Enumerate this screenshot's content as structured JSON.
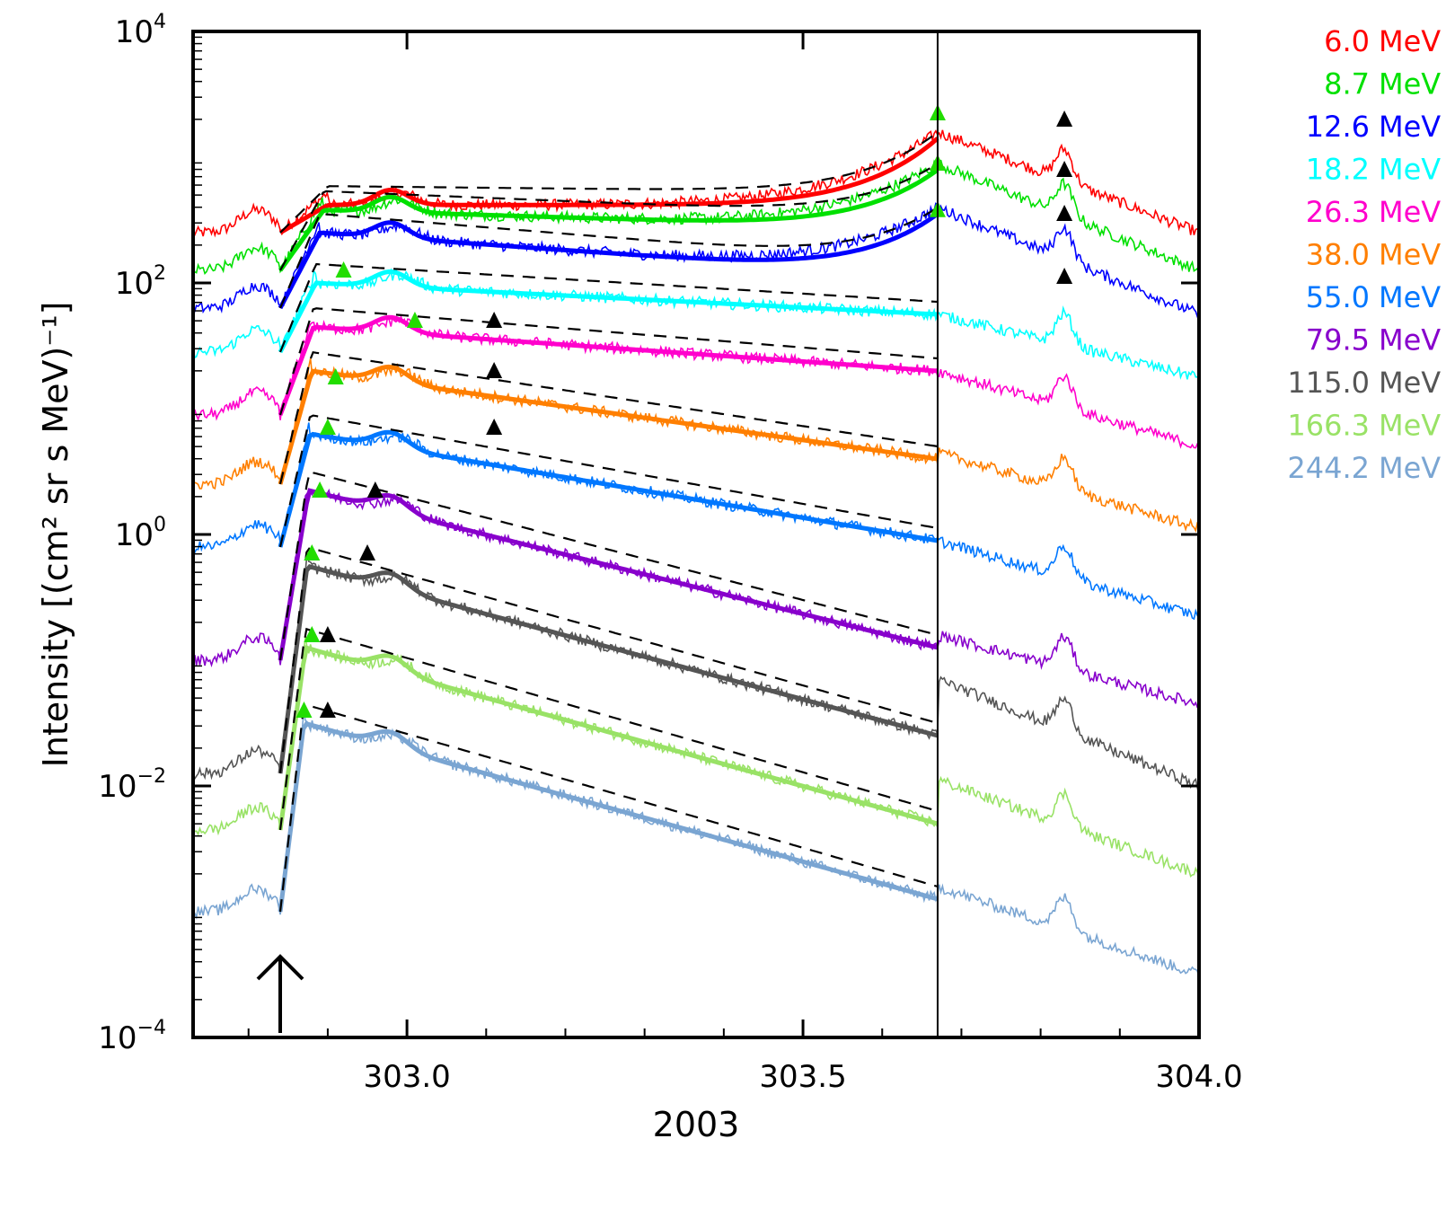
{
  "chart_data": {
    "type": "line",
    "title": "",
    "xlabel": "2003",
    "ylabel": "Intensity [(cm² sr s MeV)⁻¹]",
    "xlim": [
      302.73,
      304.0
    ],
    "ylim_log10": [
      -4,
      4
    ],
    "y_scale": "log",
    "x_ticks": [
      {
        "value": 303.0,
        "label": "303.0"
      },
      {
        "value": 303.5,
        "label": "303.5"
      },
      {
        "value": 304.0,
        "label": "304.0"
      }
    ],
    "y_ticks": [
      {
        "exp": 4,
        "base": "10",
        "sup": "4"
      },
      {
        "exp": 2,
        "base": "10",
        "sup": "2"
      },
      {
        "exp": 0,
        "base": "10",
        "sup": "0"
      },
      {
        "exp": -2,
        "base": "10",
        "sup": "−2"
      },
      {
        "exp": -4,
        "base": "10",
        "sup": "−4"
      }
    ],
    "onset_arrow_x": 302.84,
    "vertical_line_x": 303.67,
    "legend_position": "right",
    "series": [
      {
        "name": "6.0 MeV",
        "value": "6.0",
        "unit": "MeV",
        "color": "#ff0000",
        "pre": 2.4,
        "plateau": 2.62,
        "decay": 0.0,
        "end_obs": 3.2,
        "post_end": 2.4,
        "rise_offset": 0.06
      },
      {
        "name": "8.7 MeV",
        "value": "8.7",
        "unit": "MeV",
        "color": "#00e000",
        "pre": 2.1,
        "plateau": 2.58,
        "decay": 0.15,
        "end_obs": 2.95,
        "post_end": 2.1,
        "rise_offset": 0.055
      },
      {
        "name": "12.6 MeV",
        "value": "12.6",
        "unit": "MeV",
        "color": "#0000ff",
        "pre": 1.8,
        "plateau": 2.4,
        "decay": 0.35,
        "end_obs": 2.6,
        "post_end": 1.75,
        "rise_offset": 0.05
      },
      {
        "name": "18.2 MeV",
        "value": "18.2",
        "unit": "MeV",
        "color": "#00ffff",
        "pre": 1.45,
        "plateau": 2.0,
        "decay": 0.25,
        "end_obs": 1.75,
        "post_end": 1.25,
        "rise_offset": 0.045
      },
      {
        "name": "26.3 MeV",
        "value": "26.3",
        "unit": "MeV",
        "color": "#ff00cc",
        "pre": 0.95,
        "plateau": 1.65,
        "decay": 0.35,
        "end_obs": 1.3,
        "post_end": 0.7,
        "rise_offset": 0.042
      },
      {
        "name": "38.0 MeV",
        "value": "38.0",
        "unit": "MeV",
        "color": "#ff7f00",
        "pre": 0.4,
        "plateau": 1.3,
        "decay": 0.7,
        "end_obs": 0.65,
        "post_end": 0.05,
        "rise_offset": 0.04
      },
      {
        "name": "55.0 MeV",
        "value": "55.0",
        "unit": "MeV",
        "color": "#0077ff",
        "pre": -0.1,
        "plateau": 0.8,
        "decay": 0.85,
        "end_obs": -0.05,
        "post_end": -0.65,
        "rise_offset": 0.038
      },
      {
        "name": "79.5 MeV",
        "value": "79.5",
        "unit": "MeV",
        "color": "#8800cc",
        "pre": -1.0,
        "plateau": 0.35,
        "decay": 1.25,
        "end_obs": -0.8,
        "post_end": -1.35,
        "rise_offset": 0.036
      },
      {
        "name": "115.0 MeV",
        "value": "115.0",
        "unit": "MeV",
        "color": "#555555",
        "pre": -1.9,
        "plateau": -0.25,
        "decay": 1.35,
        "end_obs": -1.15,
        "post_end": -2.0,
        "rise_offset": 0.034
      },
      {
        "name": "166.3 MeV",
        "value": "166.3",
        "unit": "MeV",
        "color": "#99e266",
        "pre": -2.35,
        "plateau": -0.9,
        "decay": 1.4,
        "end_obs": -1.95,
        "post_end": -2.7,
        "rise_offset": 0.032
      },
      {
        "name": "244.2 MeV",
        "value": "244.2",
        "unit": "MeV",
        "color": "#7aa5d2",
        "pre": -3.0,
        "plateau": -1.5,
        "decay": 1.4,
        "end_obs": -2.8,
        "post_end": -3.5,
        "rise_offset": 0.03
      }
    ],
    "peak_markers_black": [
      {
        "x": 303.83,
        "y": 3.3
      },
      {
        "x": 303.83,
        "y": 2.9
      },
      {
        "x": 303.83,
        "y": 2.55
      },
      {
        "x": 303.83,
        "y": 2.05
      },
      {
        "x": 303.11,
        "y": 1.7
      },
      {
        "x": 303.11,
        "y": 1.3
      },
      {
        "x": 303.11,
        "y": 0.85
      },
      {
        "x": 302.96,
        "y": 0.35
      },
      {
        "x": 302.95,
        "y": -0.15
      },
      {
        "x": 302.9,
        "y": -0.8
      },
      {
        "x": 302.9,
        "y": -1.4
      }
    ],
    "peak_markers_green": [
      {
        "x": 303.67,
        "y": 3.35
      },
      {
        "x": 303.67,
        "y": 2.95
      },
      {
        "x": 303.67,
        "y": 2.58
      },
      {
        "x": 303.01,
        "y": 1.7
      },
      {
        "x": 302.92,
        "y": 2.1
      },
      {
        "x": 302.91,
        "y": 1.25
      },
      {
        "x": 302.9,
        "y": 0.85
      },
      {
        "x": 302.89,
        "y": 0.35
      },
      {
        "x": 302.88,
        "y": -0.15
      },
      {
        "x": 302.88,
        "y": -0.8
      },
      {
        "x": 302.87,
        "y": -1.4
      }
    ]
  }
}
